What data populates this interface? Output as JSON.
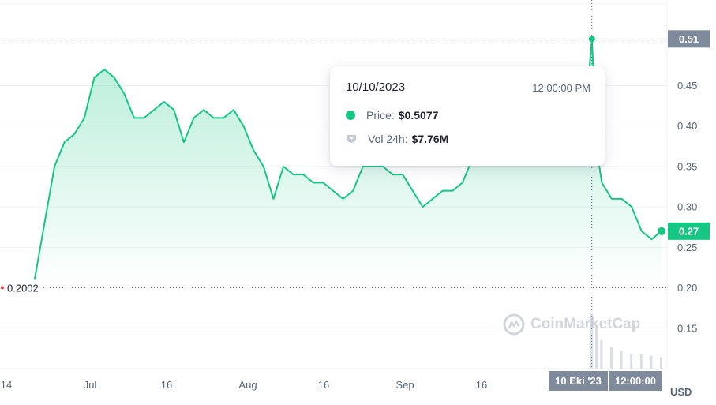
{
  "chart_data": {
    "type": "area",
    "currency_label": "USD",
    "x_ticks": [
      "14",
      "Jul",
      "16",
      "Aug",
      "16",
      "Sep",
      "16"
    ],
    "y_ticks": [
      0.15,
      0.2,
      0.25,
      0.3,
      0.35,
      0.4,
      0.45
    ],
    "y_range": [
      0.1,
      0.55
    ],
    "low_marker": "0.2002",
    "high_badge": "0.51",
    "current_badge": "0.27",
    "crosshair_date": "10 Eki '23",
    "crosshair_time": "12:00:00",
    "colors": {
      "line": "#16c784",
      "fill": "#16c784",
      "badge_gray": "#808a9d",
      "low_marker": "#ea3943"
    },
    "series": [
      {
        "x": [
          "2023-06-20",
          "2023-06-22",
          "2023-06-24",
          "2023-06-26",
          "2023-06-28",
          "2023-06-30",
          "2023-07-02",
          "2023-07-04",
          "2023-07-06",
          "2023-07-08",
          "2023-07-10",
          "2023-07-12",
          "2023-07-14",
          "2023-07-16",
          "2023-07-18",
          "2023-07-20",
          "2023-07-22",
          "2023-07-24",
          "2023-07-26",
          "2023-07-28",
          "2023-07-30",
          "2023-08-01",
          "2023-08-03",
          "2023-08-05",
          "2023-08-07",
          "2023-08-09",
          "2023-08-11",
          "2023-08-13",
          "2023-08-15",
          "2023-08-17",
          "2023-08-19",
          "2023-08-21",
          "2023-08-23",
          "2023-08-25",
          "2023-08-27",
          "2023-08-29",
          "2023-08-31",
          "2023-09-02",
          "2023-09-04",
          "2023-09-06",
          "2023-09-08",
          "2023-09-10",
          "2023-09-12",
          "2023-09-14",
          "2023-09-16",
          "2023-09-18",
          "2023-09-20",
          "2023-09-22",
          "2023-09-24",
          "2023-09-26",
          "2023-09-28",
          "2023-09-30",
          "2023-10-02",
          "2023-10-04",
          "2023-10-06",
          "2023-10-08",
          "2023-10-10",
          "2023-10-11",
          "2023-10-12",
          "2023-10-14",
          "2023-10-16",
          "2023-10-18",
          "2023-10-20",
          "2023-10-22",
          "2023-10-24"
        ],
        "y": [
          0.21,
          0.28,
          0.35,
          0.38,
          0.39,
          0.41,
          0.46,
          0.47,
          0.46,
          0.44,
          0.41,
          0.41,
          0.42,
          0.43,
          0.42,
          0.38,
          0.41,
          0.42,
          0.41,
          0.41,
          0.42,
          0.4,
          0.37,
          0.35,
          0.31,
          0.35,
          0.34,
          0.34,
          0.33,
          0.33,
          0.32,
          0.31,
          0.32,
          0.35,
          0.35,
          0.35,
          0.34,
          0.34,
          0.32,
          0.3,
          0.31,
          0.32,
          0.32,
          0.33,
          0.36,
          0.4,
          0.42,
          0.42,
          0.42,
          0.42,
          0.42,
          0.42,
          0.41,
          0.4,
          0.38,
          0.36,
          0.5077,
          0.37,
          0.33,
          0.31,
          0.31,
          0.3,
          0.27,
          0.26,
          0.27
        ],
        "volume": [
          1,
          1,
          1,
          1,
          1,
          1,
          1,
          1,
          1,
          1,
          1,
          1,
          1,
          1,
          1,
          1,
          1,
          1,
          1,
          1,
          1,
          1,
          1,
          1,
          1,
          1,
          1,
          1,
          1,
          1,
          1,
          1,
          1,
          1,
          1,
          1,
          1,
          1,
          1,
          1,
          1,
          1,
          1,
          1,
          1,
          1,
          1,
          1,
          1,
          1,
          1,
          1,
          1,
          1,
          1,
          1,
          7.76,
          6,
          4,
          3,
          2.5,
          2,
          2,
          1.8,
          1.6
        ]
      }
    ]
  },
  "tooltip": {
    "date": "10/10/2023",
    "time": "12:00:00 PM",
    "price_label": "Price:",
    "price_value": "$0.5077",
    "volume_label": "Vol 24h:",
    "volume_value": "$7.76M"
  },
  "watermark": "CoinMarketCap"
}
